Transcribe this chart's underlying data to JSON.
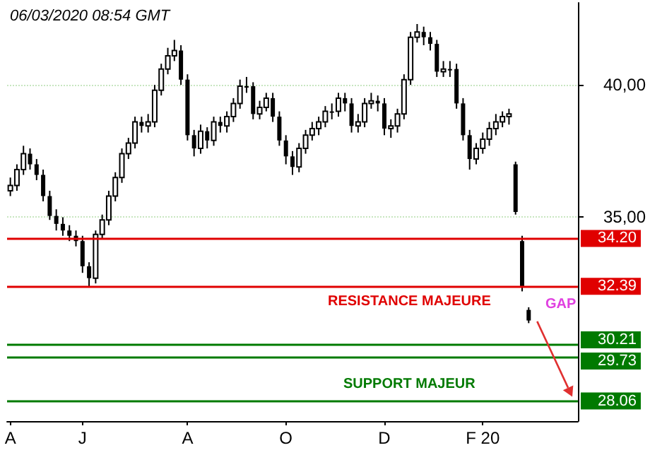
{
  "chart_data": {
    "type": "candlestick",
    "title": "06/03/2020 08:54 GMT",
    "categories": [
      "A",
      null,
      null,
      null,
      null,
      null,
      null,
      null,
      null,
      null,
      null,
      "J",
      null,
      null,
      null,
      null,
      null,
      null,
      null,
      null,
      null,
      null,
      null,
      null,
      null,
      null,
      null,
      "A",
      null,
      null,
      null,
      null,
      null,
      null,
      null,
      null,
      null,
      null,
      null,
      null,
      null,
      null,
      "O",
      null,
      null,
      null,
      null,
      null,
      null,
      null,
      null,
      null,
      null,
      null,
      null,
      null,
      null,
      "D",
      null,
      null,
      null,
      null,
      null,
      null,
      null,
      null,
      null,
      null,
      null,
      null,
      null,
      null,
      "F 20",
      null,
      null,
      null,
      null,
      null,
      null,
      null
    ],
    "color": "#000000",
    "ohlc": [
      [
        36.0,
        36.5,
        35.8,
        36.2
      ],
      [
        36.2,
        37.0,
        36.0,
        36.8
      ],
      [
        36.8,
        37.7,
        36.6,
        37.4
      ],
      [
        37.4,
        37.6,
        36.8,
        37.0
      ],
      [
        37.0,
        37.2,
        36.4,
        36.6
      ],
      [
        36.6,
        36.8,
        35.6,
        35.8
      ],
      [
        35.8,
        36.0,
        34.9,
        35.05
      ],
      [
        35.05,
        35.3,
        34.5,
        34.75
      ],
      [
        34.75,
        35.0,
        34.3,
        34.5
      ],
      [
        34.5,
        34.7,
        34.1,
        34.3
      ],
      [
        34.3,
        34.5,
        33.9,
        34.1
      ],
      [
        34.1,
        34.3,
        32.9,
        33.15
      ],
      [
        33.15,
        33.3,
        32.39,
        32.7
      ],
      [
        32.7,
        34.5,
        32.5,
        34.35
      ],
      [
        34.35,
        35.1,
        34.2,
        34.9
      ],
      [
        34.9,
        36.0,
        34.7,
        35.8
      ],
      [
        35.8,
        36.7,
        35.6,
        36.5
      ],
      [
        36.5,
        37.6,
        36.3,
        37.4
      ],
      [
        37.4,
        38.0,
        37.2,
        37.8
      ],
      [
        37.8,
        38.8,
        37.6,
        38.6
      ],
      [
        38.6,
        38.8,
        38.2,
        38.45
      ],
      [
        38.45,
        38.9,
        38.2,
        38.6
      ],
      [
        38.6,
        40.0,
        38.4,
        39.8
      ],
      [
        39.8,
        40.8,
        39.6,
        40.6
      ],
      [
        40.6,
        41.4,
        40.4,
        41.1
      ],
      [
        41.1,
        41.7,
        40.9,
        41.3
      ],
      [
        41.3,
        41.5,
        40.0,
        40.2
      ],
      [
        40.2,
        40.4,
        37.9,
        38.1
      ],
      [
        38.1,
        38.3,
        37.3,
        37.6
      ],
      [
        37.6,
        38.5,
        37.4,
        38.25
      ],
      [
        38.25,
        38.4,
        37.6,
        37.9
      ],
      [
        37.9,
        38.8,
        37.7,
        38.6
      ],
      [
        38.6,
        38.8,
        38.2,
        38.45
      ],
      [
        38.45,
        39.0,
        38.2,
        38.8
      ],
      [
        38.8,
        39.5,
        38.6,
        39.3
      ],
      [
        39.3,
        40.2,
        39.1,
        39.95
      ],
      [
        39.95,
        40.3,
        39.7,
        39.95
      ],
      [
        39.95,
        40.1,
        38.7,
        38.9
      ],
      [
        38.9,
        39.4,
        38.7,
        39.15
      ],
      [
        39.15,
        39.7,
        39.0,
        39.5
      ],
      [
        39.5,
        39.7,
        38.6,
        38.8
      ],
      [
        38.8,
        39.0,
        37.7,
        37.9
      ],
      [
        37.9,
        38.1,
        37.0,
        37.3
      ],
      [
        37.3,
        37.5,
        36.6,
        36.9
      ],
      [
        36.9,
        37.8,
        36.7,
        37.6
      ],
      [
        37.6,
        38.3,
        37.4,
        38.1
      ],
      [
        38.1,
        38.6,
        37.9,
        38.35
      ],
      [
        38.35,
        38.8,
        38.1,
        38.6
      ],
      [
        38.6,
        39.2,
        38.4,
        39.0
      ],
      [
        39.0,
        39.3,
        38.7,
        39.0
      ],
      [
        39.0,
        39.7,
        38.8,
        39.5
      ],
      [
        39.5,
        39.7,
        39.0,
        39.3
      ],
      [
        39.3,
        39.5,
        38.2,
        38.45
      ],
      [
        38.45,
        38.9,
        38.2,
        38.6
      ],
      [
        38.6,
        39.5,
        38.4,
        39.3
      ],
      [
        39.3,
        39.7,
        39.1,
        39.4
      ],
      [
        39.4,
        39.6,
        39.0,
        39.3
      ],
      [
        39.3,
        39.5,
        38.1,
        38.35
      ],
      [
        38.35,
        38.7,
        38.0,
        38.45
      ],
      [
        38.45,
        39.1,
        38.2,
        38.9
      ],
      [
        38.9,
        40.4,
        38.7,
        40.2
      ],
      [
        40.2,
        42.0,
        40.0,
        41.8
      ],
      [
        41.8,
        42.3,
        41.6,
        42.0
      ],
      [
        42.0,
        42.2,
        41.5,
        41.8
      ],
      [
        41.8,
        42.0,
        41.3,
        41.55
      ],
      [
        41.55,
        41.7,
        40.3,
        40.5
      ],
      [
        40.5,
        40.9,
        40.3,
        40.6
      ],
      [
        40.6,
        40.9,
        40.3,
        40.6
      ],
      [
        40.6,
        40.8,
        39.1,
        39.3
      ],
      [
        39.3,
        39.5,
        37.9,
        38.1
      ],
      [
        38.1,
        38.3,
        36.8,
        37.2
      ],
      [
        37.2,
        37.8,
        37.0,
        37.6
      ],
      [
        37.6,
        38.2,
        37.4,
        37.95
      ],
      [
        37.95,
        38.6,
        37.7,
        38.35
      ],
      [
        38.35,
        38.9,
        38.1,
        38.6
      ],
      [
        38.6,
        39.0,
        38.4,
        38.8
      ],
      [
        38.8,
        39.1,
        38.5,
        38.9
      ],
      [
        37.0,
        37.1,
        35.1,
        35.2
      ],
      [
        34.1,
        34.3,
        32.2,
        32.4
      ],
      [
        31.5,
        31.6,
        31.0,
        31.1
      ]
    ],
    "ylim": [
      27.3,
      43.1
    ],
    "yticks": [
      {
        "value": 35,
        "label": "35,00"
      },
      {
        "value": 40,
        "label": "40,00"
      }
    ],
    "grid": "y",
    "ref_lines": [
      {
        "axis": "y",
        "value": 34.2,
        "label": "34.20",
        "color": "#e00000"
      },
      {
        "axis": "y",
        "value": 32.39,
        "label": "32.39",
        "color": "#e00000"
      },
      {
        "axis": "y",
        "value": 30.21,
        "label": "30.21",
        "color": "#007a00"
      },
      {
        "axis": "y",
        "value": 29.73,
        "label": "29.73",
        "color": "#007a00"
      },
      {
        "axis": "y",
        "value": 28.06,
        "label": "28.06",
        "color": "#007a00"
      }
    ],
    "annotations": [
      "RESISTANCE MAJEURE",
      "SUPPORT MAJEUR",
      "GAP"
    ]
  }
}
